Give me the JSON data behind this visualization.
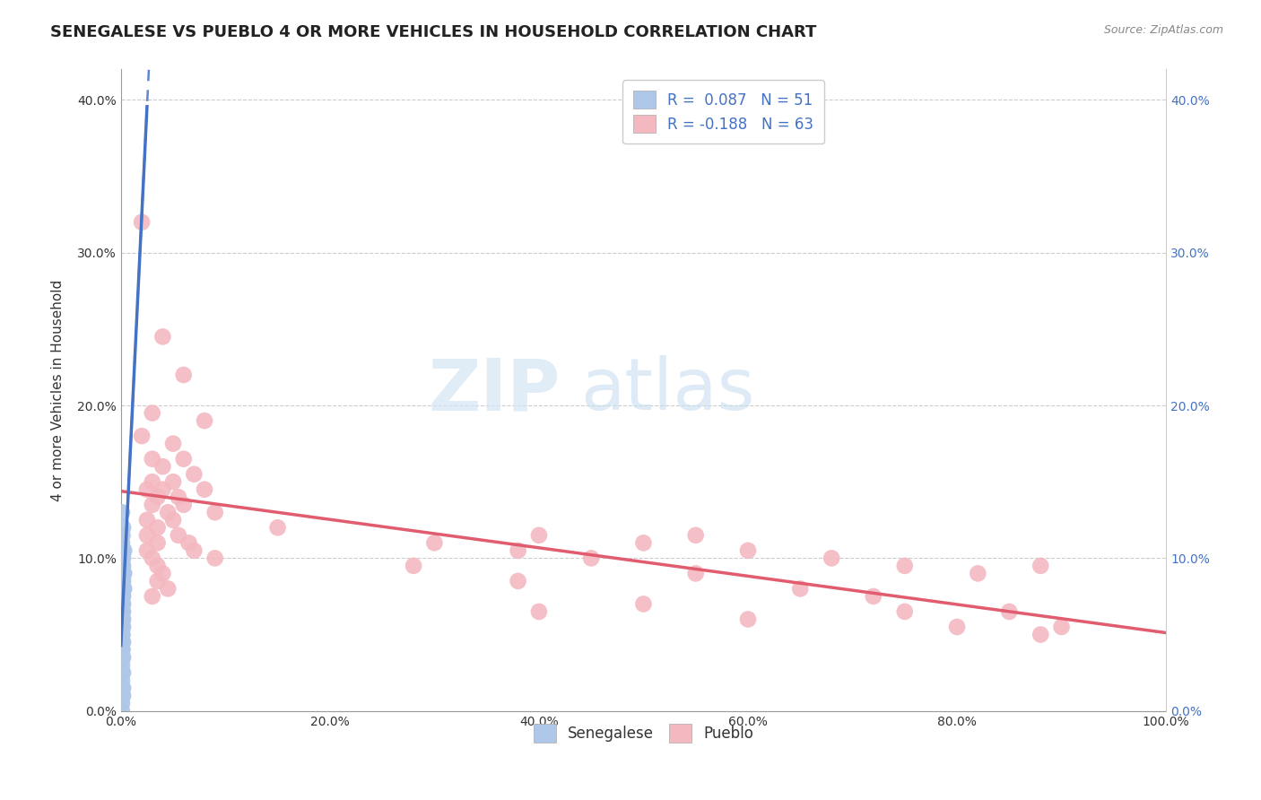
{
  "title": "SENEGALESE VS PUEBLO 4 OR MORE VEHICLES IN HOUSEHOLD CORRELATION CHART",
  "source_text": "Source: ZipAtlas.com",
  "ylabel": "4 or more Vehicles in Household",
  "xlim": [
    0.0,
    1.0
  ],
  "ylim": [
    0.0,
    0.42
  ],
  "xtick_labels": [
    "0.0%",
    "20.0%",
    "40.0%",
    "60.0%",
    "80.0%",
    "100.0%"
  ],
  "xtick_vals": [
    0.0,
    0.2,
    0.4,
    0.6,
    0.8,
    1.0
  ],
  "ytick_labels": [
    "0.0%",
    "10.0%",
    "20.0%",
    "30.0%",
    "40.0%"
  ],
  "ytick_vals": [
    0.0,
    0.1,
    0.2,
    0.3,
    0.4
  ],
  "legend_labels": [
    "R =  0.087   N = 51",
    "R = -0.188   N = 63"
  ],
  "senegalese_color": "#aec6e8",
  "pueblo_color": "#f4b8c1",
  "senegalese_line_color": "#4472c4",
  "pueblo_line_color": "#e05c6e",
  "background_color": "#ffffff",
  "watermark_text1": "ZIP",
  "watermark_text2": "atlas",
  "title_fontsize": 13,
  "axis_label_fontsize": 11,
  "tick_fontsize": 10,
  "senegalese_points": [
    [
      0.001,
      0.13
    ],
    [
      0.002,
      0.12
    ],
    [
      0.0015,
      0.115
    ],
    [
      0.001,
      0.11
    ],
    [
      0.002,
      0.105
    ],
    [
      0.003,
      0.105
    ],
    [
      0.001,
      0.1
    ],
    [
      0.0015,
      0.1
    ],
    [
      0.002,
      0.1
    ],
    [
      0.001,
      0.095
    ],
    [
      0.002,
      0.095
    ],
    [
      0.003,
      0.09
    ],
    [
      0.001,
      0.09
    ],
    [
      0.002,
      0.09
    ],
    [
      0.0015,
      0.085
    ],
    [
      0.001,
      0.085
    ],
    [
      0.002,
      0.085
    ],
    [
      0.003,
      0.08
    ],
    [
      0.001,
      0.08
    ],
    [
      0.002,
      0.08
    ],
    [
      0.0015,
      0.075
    ],
    [
      0.001,
      0.075
    ],
    [
      0.002,
      0.075
    ],
    [
      0.001,
      0.07
    ],
    [
      0.0015,
      0.07
    ],
    [
      0.002,
      0.07
    ],
    [
      0.001,
      0.065
    ],
    [
      0.002,
      0.065
    ],
    [
      0.001,
      0.06
    ],
    [
      0.0015,
      0.06
    ],
    [
      0.002,
      0.06
    ],
    [
      0.001,
      0.055
    ],
    [
      0.002,
      0.055
    ],
    [
      0.001,
      0.05
    ],
    [
      0.0015,
      0.05
    ],
    [
      0.001,
      0.045
    ],
    [
      0.002,
      0.045
    ],
    [
      0.001,
      0.04
    ],
    [
      0.0015,
      0.04
    ],
    [
      0.001,
      0.035
    ],
    [
      0.002,
      0.035
    ],
    [
      0.001,
      0.03
    ],
    [
      0.001,
      0.025
    ],
    [
      0.002,
      0.025
    ],
    [
      0.001,
      0.02
    ],
    [
      0.001,
      0.015
    ],
    [
      0.002,
      0.015
    ],
    [
      0.001,
      0.01
    ],
    [
      0.002,
      0.01
    ],
    [
      0.001,
      0.005
    ],
    [
      0.001,
      0.0
    ]
  ],
  "pueblo_points": [
    [
      0.02,
      0.32
    ],
    [
      0.04,
      0.245
    ],
    [
      0.06,
      0.22
    ],
    [
      0.03,
      0.195
    ],
    [
      0.08,
      0.19
    ],
    [
      0.02,
      0.18
    ],
    [
      0.05,
      0.175
    ],
    [
      0.03,
      0.165
    ],
    [
      0.06,
      0.165
    ],
    [
      0.04,
      0.16
    ],
    [
      0.07,
      0.155
    ],
    [
      0.03,
      0.15
    ],
    [
      0.05,
      0.15
    ],
    [
      0.025,
      0.145
    ],
    [
      0.04,
      0.145
    ],
    [
      0.08,
      0.145
    ],
    [
      0.055,
      0.14
    ],
    [
      0.035,
      0.14
    ],
    [
      0.03,
      0.135
    ],
    [
      0.06,
      0.135
    ],
    [
      0.045,
      0.13
    ],
    [
      0.09,
      0.13
    ],
    [
      0.025,
      0.125
    ],
    [
      0.05,
      0.125
    ],
    [
      0.035,
      0.12
    ],
    [
      0.15,
      0.12
    ],
    [
      0.025,
      0.115
    ],
    [
      0.055,
      0.115
    ],
    [
      0.4,
      0.115
    ],
    [
      0.55,
      0.115
    ],
    [
      0.035,
      0.11
    ],
    [
      0.065,
      0.11
    ],
    [
      0.3,
      0.11
    ],
    [
      0.5,
      0.11
    ],
    [
      0.025,
      0.105
    ],
    [
      0.07,
      0.105
    ],
    [
      0.38,
      0.105
    ],
    [
      0.6,
      0.105
    ],
    [
      0.03,
      0.1
    ],
    [
      0.09,
      0.1
    ],
    [
      0.45,
      0.1
    ],
    [
      0.68,
      0.1
    ],
    [
      0.035,
      0.095
    ],
    [
      0.28,
      0.095
    ],
    [
      0.75,
      0.095
    ],
    [
      0.88,
      0.095
    ],
    [
      0.04,
      0.09
    ],
    [
      0.55,
      0.09
    ],
    [
      0.82,
      0.09
    ],
    [
      0.035,
      0.085
    ],
    [
      0.38,
      0.085
    ],
    [
      0.045,
      0.08
    ],
    [
      0.65,
      0.08
    ],
    [
      0.03,
      0.075
    ],
    [
      0.72,
      0.075
    ],
    [
      0.5,
      0.07
    ],
    [
      0.4,
      0.065
    ],
    [
      0.75,
      0.065
    ],
    [
      0.85,
      0.065
    ],
    [
      0.6,
      0.06
    ],
    [
      0.8,
      0.055
    ],
    [
      0.9,
      0.055
    ],
    [
      0.88,
      0.05
    ]
  ]
}
